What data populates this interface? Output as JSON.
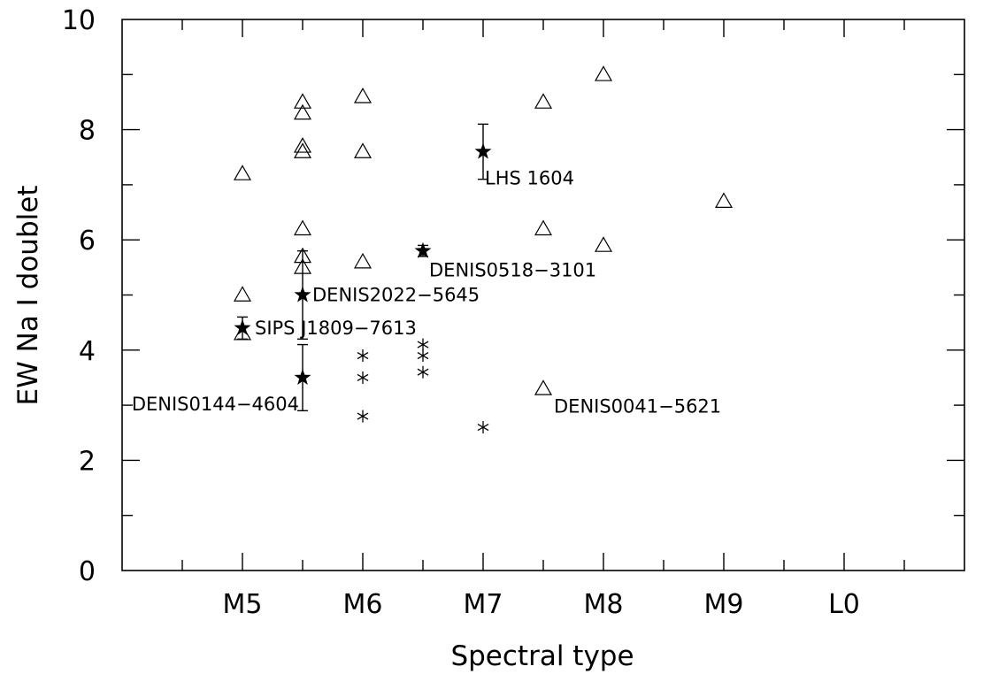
{
  "chart_data": {
    "type": "scatter",
    "title": "",
    "xlabel": "Spectral type",
    "ylabel": "EW Na I doublet",
    "xlim": [
      4,
      11
    ],
    "ylim": [
      0,
      10
    ],
    "x_tick_values": [
      5,
      6,
      7,
      8,
      9,
      10
    ],
    "x_tick_labels": [
      "M5",
      "M6",
      "M7",
      "M8",
      "M9",
      "L0"
    ],
    "y_tick_values": [
      0,
      2,
      4,
      6,
      8,
      10
    ],
    "y_tick_labels": [
      "0",
      "2",
      "4",
      "6",
      "8",
      "10"
    ],
    "grid": false,
    "series": [
      {
        "marker": "triangle",
        "points": [
          [
            5,
            7.2
          ],
          [
            5,
            5.0
          ],
          [
            5,
            4.3
          ],
          [
            5.5,
            8.5
          ],
          [
            5.5,
            8.3
          ],
          [
            5.5,
            7.7
          ],
          [
            5.5,
            7.6
          ],
          [
            5.5,
            6.2
          ],
          [
            5.5,
            5.7
          ],
          [
            5.5,
            5.5
          ],
          [
            6,
            8.6
          ],
          [
            6,
            7.6
          ],
          [
            6,
            5.6
          ],
          [
            7.5,
            8.5
          ],
          [
            7.5,
            6.2
          ],
          [
            7.5,
            3.3
          ],
          [
            8,
            9.0
          ],
          [
            8,
            5.9
          ],
          [
            9,
            6.7
          ]
        ]
      },
      {
        "marker": "asterisk",
        "points": [
          [
            6,
            3.9
          ],
          [
            6,
            3.5
          ],
          [
            6,
            2.8
          ],
          [
            6.5,
            4.1
          ],
          [
            6.5,
            3.9
          ],
          [
            6.5,
            3.6
          ],
          [
            7,
            2.6
          ]
        ]
      },
      {
        "marker": "star",
        "points": [
          {
            "x": 5,
            "y": 4.4,
            "err": 0.2,
            "label": "SIPS J1809−7613"
          },
          {
            "x": 5.5,
            "y": 5.0,
            "err": 0.8,
            "label": "DENIS2022−5645"
          },
          {
            "x": 5.5,
            "y": 3.5,
            "err": 0.6,
            "label": "DENIS0144−4604"
          },
          {
            "x": 6.5,
            "y": 5.8,
            "err": 0.1,
            "label": "DENIS0518−3101"
          },
          {
            "x": 7,
            "y": 7.6,
            "err": 0.5,
            "label": "LHS 1604"
          }
        ]
      }
    ],
    "annotations": [
      {
        "text": "DENIS0041−5621",
        "x": 7.5,
        "y": 3.3
      }
    ]
  }
}
